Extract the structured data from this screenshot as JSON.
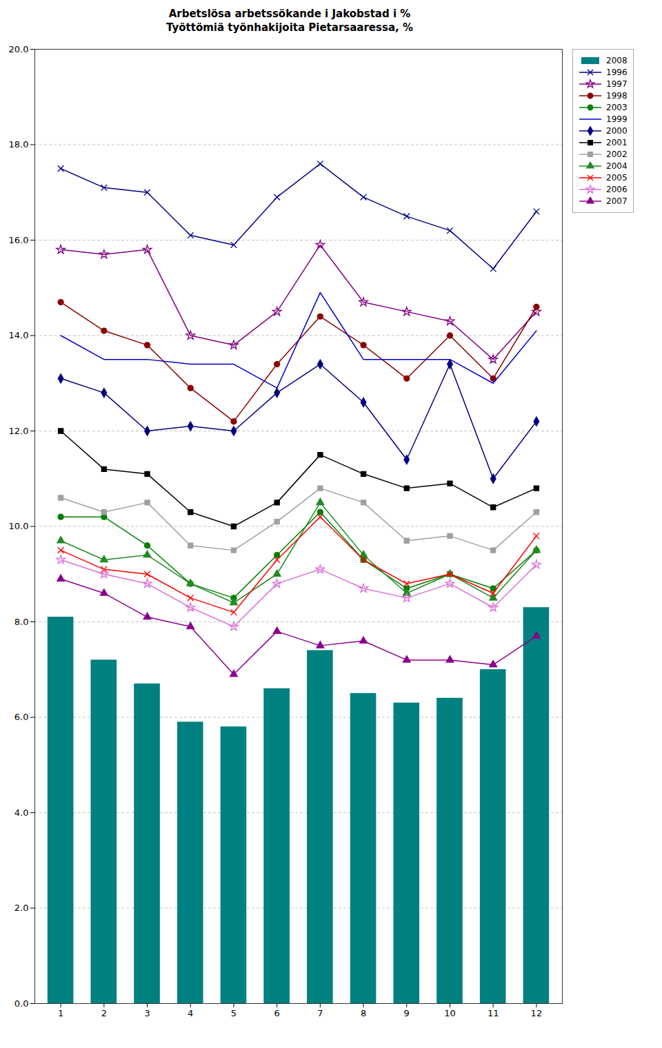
{
  "chart_data": {
    "type": "bar",
    "title": "Arbetslösa arbetssökande i Jakobstad i %\nTyöttömiä työnhakijoita Pietarsaaressa, %",
    "x": [
      1,
      2,
      3,
      4,
      5,
      6,
      7,
      8,
      9,
      10,
      11,
      12
    ],
    "xlim": [
      0.4,
      12.6
    ],
    "xticks": [
      1,
      2,
      3,
      4,
      5,
      6,
      7,
      8,
      9,
      10,
      11,
      12
    ],
    "ylim": [
      0.0,
      20.0
    ],
    "yticks": [
      {
        "value": 0,
        "label": "0.0"
      },
      {
        "value": 2,
        "label": "2.0"
      },
      {
        "value": 4,
        "label": "4.0"
      },
      {
        "value": 6,
        "label": "6.0"
      },
      {
        "value": 8,
        "label": "8.0"
      },
      {
        "value": 10,
        "label": "10.0"
      },
      {
        "value": 12,
        "label": "12.0"
      },
      {
        "value": 14,
        "label": "14.0"
      },
      {
        "value": 16,
        "label": "16.0"
      },
      {
        "value": 18,
        "label": "18.0"
      },
      {
        "value": 20,
        "label": "20.0"
      }
    ],
    "grid": true,
    "legend": "upper right",
    "series": [
      {
        "name": "2008",
        "type": "bar",
        "color": "#008080",
        "values": [
          8.1,
          7.2,
          6.7,
          5.9,
          5.8,
          6.6,
          7.4,
          6.5,
          6.3,
          6.4,
          7.0,
          8.3
        ]
      },
      {
        "name": "1996",
        "type": "line",
        "color": "#00008B",
        "marker": "x",
        "values": [
          17.5,
          17.1,
          17.0,
          16.1,
          15.9,
          16.9,
          17.6,
          16.9,
          16.5,
          16.2,
          15.4,
          16.6
        ]
      },
      {
        "name": "1997",
        "type": "line",
        "color": "#800080",
        "marker": "star",
        "values": [
          15.8,
          15.7,
          15.8,
          14.0,
          13.8,
          14.5,
          15.9,
          14.7,
          14.5,
          14.3,
          13.5,
          14.5
        ]
      },
      {
        "name": "1998",
        "type": "line",
        "color": "#8B0000",
        "marker": "circle",
        "values": [
          14.7,
          14.1,
          13.8,
          12.9,
          12.2,
          13.4,
          14.4,
          13.8,
          13.1,
          14.0,
          13.1,
          14.6
        ]
      },
      {
        "name": "2003",
        "type": "line",
        "color": "#008000",
        "marker": "circle",
        "values": [
          10.2,
          10.2,
          9.6,
          8.8,
          8.5,
          9.4,
          10.3,
          9.3,
          8.7,
          9.0,
          8.7,
          9.5
        ]
      },
      {
        "name": "1999",
        "type": "line",
        "color": "#0000CD",
        "marker": "none",
        "values": [
          14.0,
          13.5,
          13.5,
          13.4,
          13.4,
          12.9,
          14.9,
          13.5,
          13.5,
          13.5,
          13.0,
          14.1
        ]
      },
      {
        "name": "2000",
        "type": "line",
        "color": "#000080",
        "marker": "diamond",
        "values": [
          13.1,
          12.8,
          12.0,
          12.1,
          12.0,
          12.8,
          13.4,
          12.6,
          11.4,
          13.4,
          11.0,
          12.2
        ]
      },
      {
        "name": "2001",
        "type": "line",
        "color": "#000000",
        "marker": "square",
        "values": [
          12.0,
          11.2,
          11.1,
          10.3,
          10.0,
          10.5,
          11.5,
          11.1,
          10.8,
          10.9,
          10.4,
          10.8
        ]
      },
      {
        "name": "2002",
        "type": "line",
        "color": "#A0A0A0",
        "marker": "square",
        "values": [
          10.6,
          10.3,
          10.5,
          9.6,
          9.5,
          10.1,
          10.8,
          10.5,
          9.7,
          9.8,
          9.5,
          10.3
        ]
      },
      {
        "name": "2004",
        "type": "line",
        "color": "#228B22",
        "marker": "triangle",
        "values": [
          9.7,
          9.3,
          9.4,
          8.8,
          8.4,
          9.0,
          10.5,
          9.4,
          8.6,
          9.0,
          8.5,
          9.5
        ]
      },
      {
        "name": "2005",
        "type": "line",
        "color": "#FF0000",
        "marker": "x",
        "values": [
          9.5,
          9.1,
          9.0,
          8.5,
          8.2,
          9.3,
          10.2,
          9.3,
          8.8,
          9.0,
          8.6,
          9.8
        ]
      },
      {
        "name": "2006",
        "type": "line",
        "color": "#DA70D6",
        "marker": "star",
        "values": [
          9.3,
          9.0,
          8.8,
          8.3,
          7.9,
          8.8,
          9.1,
          8.7,
          8.5,
          8.8,
          8.3,
          9.2
        ]
      },
      {
        "name": "2007",
        "type": "line",
        "color": "#8B008B",
        "marker": "triangle",
        "values": [
          8.9,
          8.6,
          8.1,
          7.9,
          6.9,
          7.8,
          7.5,
          7.6,
          7.2,
          7.2,
          7.1,
          7.7
        ]
      }
    ]
  }
}
